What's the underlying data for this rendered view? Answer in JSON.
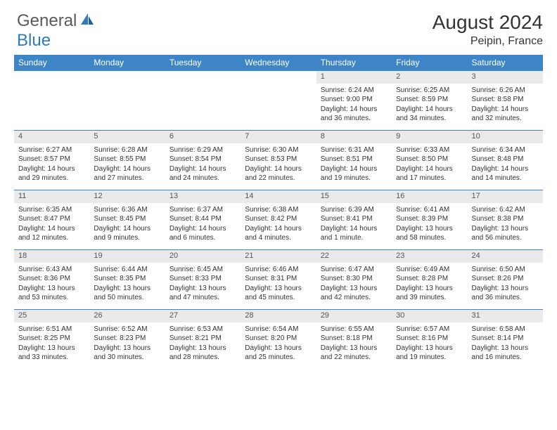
{
  "brand": {
    "part1": "General",
    "part2": "Blue"
  },
  "title": "August 2024",
  "location": "Peipin, France",
  "header_bg": "#3d85c6",
  "daynum_bg": "#eaeaea",
  "divider_color": "#3d85c6",
  "columns": [
    "Sunday",
    "Monday",
    "Tuesday",
    "Wednesday",
    "Thursday",
    "Friday",
    "Saturday"
  ],
  "weeks": [
    {
      "nums": [
        "",
        "",
        "",
        "",
        "1",
        "2",
        "3"
      ],
      "details": [
        "",
        "",
        "",
        "",
        "Sunrise: 6:24 AM\nSunset: 9:00 PM\nDaylight: 14 hours and 36 minutes.",
        "Sunrise: 6:25 AM\nSunset: 8:59 PM\nDaylight: 14 hours and 34 minutes.",
        "Sunrise: 6:26 AM\nSunset: 8:58 PM\nDaylight: 14 hours and 32 minutes."
      ]
    },
    {
      "nums": [
        "4",
        "5",
        "6",
        "7",
        "8",
        "9",
        "10"
      ],
      "details": [
        "Sunrise: 6:27 AM\nSunset: 8:57 PM\nDaylight: 14 hours and 29 minutes.",
        "Sunrise: 6:28 AM\nSunset: 8:55 PM\nDaylight: 14 hours and 27 minutes.",
        "Sunrise: 6:29 AM\nSunset: 8:54 PM\nDaylight: 14 hours and 24 minutes.",
        "Sunrise: 6:30 AM\nSunset: 8:53 PM\nDaylight: 14 hours and 22 minutes.",
        "Sunrise: 6:31 AM\nSunset: 8:51 PM\nDaylight: 14 hours and 19 minutes.",
        "Sunrise: 6:33 AM\nSunset: 8:50 PM\nDaylight: 14 hours and 17 minutes.",
        "Sunrise: 6:34 AM\nSunset: 8:48 PM\nDaylight: 14 hours and 14 minutes."
      ]
    },
    {
      "nums": [
        "11",
        "12",
        "13",
        "14",
        "15",
        "16",
        "17"
      ],
      "details": [
        "Sunrise: 6:35 AM\nSunset: 8:47 PM\nDaylight: 14 hours and 12 minutes.",
        "Sunrise: 6:36 AM\nSunset: 8:45 PM\nDaylight: 14 hours and 9 minutes.",
        "Sunrise: 6:37 AM\nSunset: 8:44 PM\nDaylight: 14 hours and 6 minutes.",
        "Sunrise: 6:38 AM\nSunset: 8:42 PM\nDaylight: 14 hours and 4 minutes.",
        "Sunrise: 6:39 AM\nSunset: 8:41 PM\nDaylight: 14 hours and 1 minute.",
        "Sunrise: 6:41 AM\nSunset: 8:39 PM\nDaylight: 13 hours and 58 minutes.",
        "Sunrise: 6:42 AM\nSunset: 8:38 PM\nDaylight: 13 hours and 56 minutes."
      ]
    },
    {
      "nums": [
        "18",
        "19",
        "20",
        "21",
        "22",
        "23",
        "24"
      ],
      "details": [
        "Sunrise: 6:43 AM\nSunset: 8:36 PM\nDaylight: 13 hours and 53 minutes.",
        "Sunrise: 6:44 AM\nSunset: 8:35 PM\nDaylight: 13 hours and 50 minutes.",
        "Sunrise: 6:45 AM\nSunset: 8:33 PM\nDaylight: 13 hours and 47 minutes.",
        "Sunrise: 6:46 AM\nSunset: 8:31 PM\nDaylight: 13 hours and 45 minutes.",
        "Sunrise: 6:47 AM\nSunset: 8:30 PM\nDaylight: 13 hours and 42 minutes.",
        "Sunrise: 6:49 AM\nSunset: 8:28 PM\nDaylight: 13 hours and 39 minutes.",
        "Sunrise: 6:50 AM\nSunset: 8:26 PM\nDaylight: 13 hours and 36 minutes."
      ]
    },
    {
      "nums": [
        "25",
        "26",
        "27",
        "28",
        "29",
        "30",
        "31"
      ],
      "details": [
        "Sunrise: 6:51 AM\nSunset: 8:25 PM\nDaylight: 13 hours and 33 minutes.",
        "Sunrise: 6:52 AM\nSunset: 8:23 PM\nDaylight: 13 hours and 30 minutes.",
        "Sunrise: 6:53 AM\nSunset: 8:21 PM\nDaylight: 13 hours and 28 minutes.",
        "Sunrise: 6:54 AM\nSunset: 8:20 PM\nDaylight: 13 hours and 25 minutes.",
        "Sunrise: 6:55 AM\nSunset: 8:18 PM\nDaylight: 13 hours and 22 minutes.",
        "Sunrise: 6:57 AM\nSunset: 8:16 PM\nDaylight: 13 hours and 19 minutes.",
        "Sunrise: 6:58 AM\nSunset: 8:14 PM\nDaylight: 13 hours and 16 minutes."
      ]
    }
  ]
}
